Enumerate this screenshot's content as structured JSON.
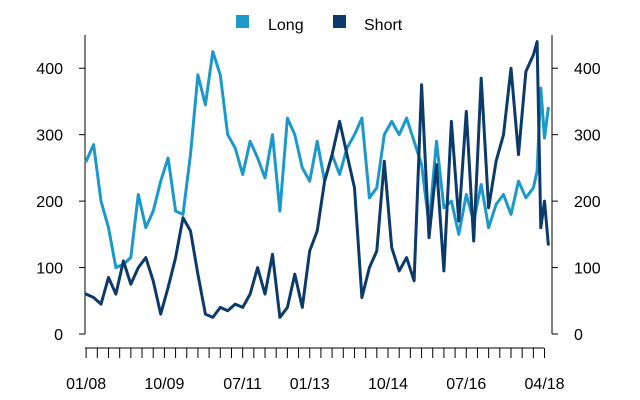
{
  "chart_data": {
    "type": "line",
    "title": "",
    "xlabel": "",
    "ylabel": "",
    "ylim": [
      0,
      450
    ],
    "y_ticks": [
      0,
      100,
      200,
      300,
      400
    ],
    "x_ticks": [
      "01/08",
      "10/09",
      "07/11",
      "01/13",
      "10/14",
      "07/16",
      "04/18"
    ],
    "grid": false,
    "legend_position": "top-center",
    "series": [
      {
        "name": "Long",
        "color": "#1b99cb",
        "points": [
          [
            "01/08",
            260
          ],
          [
            "03/08",
            285
          ],
          [
            "05/08",
            200
          ],
          [
            "07/08",
            160
          ],
          [
            "09/08",
            100
          ],
          [
            "11/08",
            105
          ],
          [
            "01/09",
            115
          ],
          [
            "03/09",
            210
          ],
          [
            "05/09",
            160
          ],
          [
            "07/09",
            185
          ],
          [
            "09/09",
            230
          ],
          [
            "11/09",
            265
          ],
          [
            "01/10",
            185
          ],
          [
            "03/10",
            180
          ],
          [
            "05/10",
            270
          ],
          [
            "07/10",
            390
          ],
          [
            "09/10",
            345
          ],
          [
            "11/10",
            425
          ],
          [
            "01/11",
            390
          ],
          [
            "03/11",
            300
          ],
          [
            "05/11",
            280
          ],
          [
            "07/11",
            240
          ],
          [
            "09/11",
            290
          ],
          [
            "11/11",
            265
          ],
          [
            "01/12",
            235
          ],
          [
            "03/12",
            300
          ],
          [
            "05/12",
            185
          ],
          [
            "07/12",
            325
          ],
          [
            "09/12",
            300
          ],
          [
            "11/12",
            250
          ],
          [
            "01/13",
            230
          ],
          [
            "03/13",
            290
          ],
          [
            "05/13",
            230
          ],
          [
            "07/13",
            270
          ],
          [
            "09/13",
            240
          ],
          [
            "11/13",
            280
          ],
          [
            "01/14",
            300
          ],
          [
            "03/14",
            325
          ],
          [
            "05/14",
            205
          ],
          [
            "07/14",
            220
          ],
          [
            "09/14",
            300
          ],
          [
            "11/14",
            320
          ],
          [
            "01/15",
            300
          ],
          [
            "03/15",
            325
          ],
          [
            "05/15",
            290
          ],
          [
            "07/15",
            255
          ],
          [
            "09/15",
            165
          ],
          [
            "11/15",
            290
          ],
          [
            "01/16",
            190
          ],
          [
            "03/16",
            200
          ],
          [
            "05/16",
            150
          ],
          [
            "07/16",
            210
          ],
          [
            "09/16",
            170
          ],
          [
            "11/16",
            225
          ],
          [
            "01/17",
            160
          ],
          [
            "03/17",
            195
          ],
          [
            "05/17",
            210
          ],
          [
            "07/17",
            180
          ],
          [
            "09/17",
            230
          ],
          [
            "11/17",
            205
          ],
          [
            "01/18",
            220
          ],
          [
            "02/18",
            245
          ],
          [
            "03/18",
            370
          ],
          [
            "04/18",
            295
          ],
          [
            "05/18",
            340
          ]
        ]
      },
      {
        "name": "Short",
        "color": "#0c3a6b",
        "points": [
          [
            "01/08",
            60
          ],
          [
            "03/08",
            55
          ],
          [
            "05/08",
            45
          ],
          [
            "07/08",
            85
          ],
          [
            "09/08",
            60
          ],
          [
            "11/08",
            110
          ],
          [
            "01/09",
            75
          ],
          [
            "03/09",
            100
          ],
          [
            "05/09",
            115
          ],
          [
            "07/09",
            80
          ],
          [
            "09/09",
            30
          ],
          [
            "11/09",
            70
          ],
          [
            "01/10",
            115
          ],
          [
            "03/10",
            175
          ],
          [
            "05/10",
            155
          ],
          [
            "07/10",
            90
          ],
          [
            "09/10",
            30
          ],
          [
            "11/10",
            25
          ],
          [
            "01/11",
            40
          ],
          [
            "03/11",
            35
          ],
          [
            "05/11",
            45
          ],
          [
            "07/11",
            40
          ],
          [
            "09/11",
            60
          ],
          [
            "11/11",
            100
          ],
          [
            "01/12",
            60
          ],
          [
            "03/12",
            120
          ],
          [
            "05/12",
            25
          ],
          [
            "07/12",
            40
          ],
          [
            "09/12",
            90
          ],
          [
            "11/12",
            40
          ],
          [
            "01/13",
            125
          ],
          [
            "03/13",
            155
          ],
          [
            "05/13",
            230
          ],
          [
            "07/13",
            270
          ],
          [
            "09/13",
            320
          ],
          [
            "11/13",
            270
          ],
          [
            "01/14",
            220
          ],
          [
            "03/14",
            55
          ],
          [
            "05/14",
            100
          ],
          [
            "07/14",
            125
          ],
          [
            "09/14",
            260
          ],
          [
            "11/14",
            130
          ],
          [
            "01/15",
            95
          ],
          [
            "03/15",
            115
          ],
          [
            "05/15",
            80
          ],
          [
            "07/15",
            375
          ],
          [
            "09/15",
            145
          ],
          [
            "11/15",
            255
          ],
          [
            "01/16",
            95
          ],
          [
            "03/16",
            320
          ],
          [
            "05/16",
            170
          ],
          [
            "07/16",
            335
          ],
          [
            "09/16",
            140
          ],
          [
            "11/16",
            385
          ],
          [
            "01/17",
            190
          ],
          [
            "03/17",
            260
          ],
          [
            "05/17",
            300
          ],
          [
            "07/17",
            400
          ],
          [
            "09/17",
            270
          ],
          [
            "11/17",
            395
          ],
          [
            "01/18",
            420
          ],
          [
            "02/18",
            440
          ],
          [
            "03/18",
            160
          ],
          [
            "04/18",
            200
          ],
          [
            "05/18",
            135
          ]
        ]
      }
    ]
  }
}
